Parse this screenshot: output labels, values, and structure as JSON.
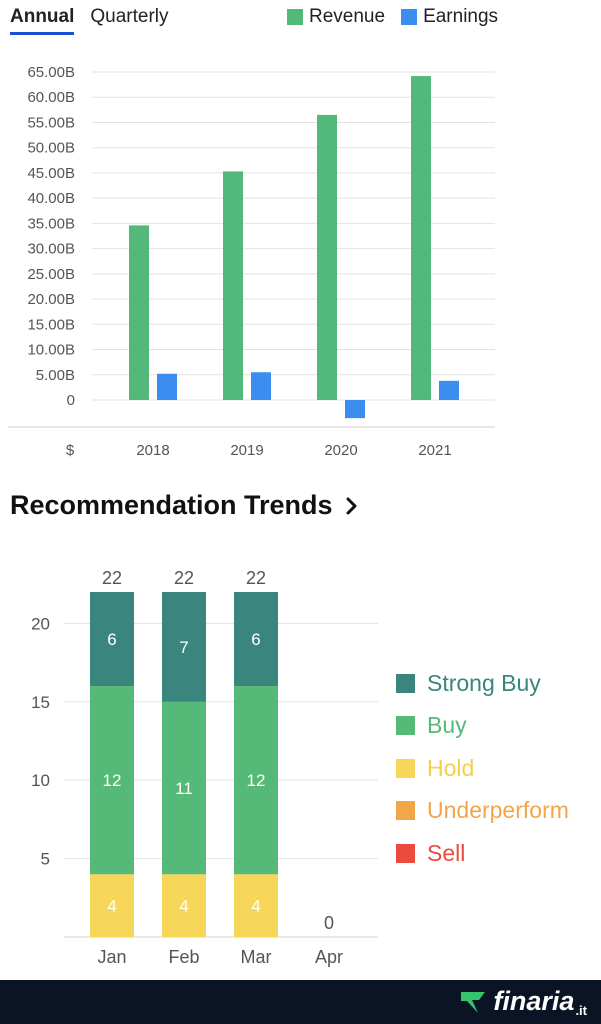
{
  "tabs": [
    {
      "label": "Annual",
      "active": true
    },
    {
      "label": "Quarterly",
      "active": false
    }
  ],
  "colors": {
    "revenue": "#53b97a",
    "earnings": "#3b8df0",
    "strong_buy": "#3a857d",
    "buy": "#55b977",
    "hold": "#f7d75a",
    "underperform": "#f3a54a",
    "sell": "#eb4a3e",
    "tab_underline": "#1a4fd8",
    "footer_bg": "#0b1424"
  },
  "section": {
    "title": "Recommendation Trends",
    "chevron": "chevron-right-icon"
  },
  "brand": {
    "name": "finaria",
    "suffix": ".it",
    "logo_icon": "finaria-logo-icon"
  },
  "chart_data": [
    {
      "type": "bar",
      "y_axis_unit_label": "$",
      "categories": [
        "2018",
        "2019",
        "2020",
        "2021"
      ],
      "series": [
        {
          "name": "Revenue",
          "values": [
            34.6,
            45.3,
            56.5,
            64.2
          ]
        },
        {
          "name": "Earnings",
          "values": [
            5.2,
            5.5,
            -3.6,
            3.8
          ]
        }
      ],
      "ylim": [
        -5,
        65
      ],
      "ticks": [
        0,
        5,
        10,
        15,
        20,
        25,
        30,
        35,
        40,
        45,
        50,
        55,
        60,
        65
      ],
      "tick_labels": [
        "0",
        "5.00B",
        "10.00B",
        "15.00B",
        "20.00B",
        "25.00B",
        "30.00B",
        "35.00B",
        "40.00B",
        "45.00B",
        "50.00B",
        "55.00B",
        "60.00B",
        "65.00B"
      ],
      "legend": "top",
      "grid": true
    },
    {
      "type": "bar",
      "stacked": true,
      "categories": [
        "Jan",
        "Feb",
        "Mar",
        "Apr"
      ],
      "series": [
        {
          "name": "Hold",
          "values": [
            4,
            4,
            4,
            0
          ]
        },
        {
          "name": "Buy",
          "values": [
            12,
            11,
            12,
            0
          ]
        },
        {
          "name": "Strong Buy",
          "values": [
            6,
            7,
            6,
            0
          ]
        },
        {
          "name": "Underperform",
          "values": [
            0,
            0,
            0,
            0
          ]
        },
        {
          "name": "Sell",
          "values": [
            0,
            0,
            0,
            0
          ]
        }
      ],
      "totals": [
        22,
        22,
        22,
        0
      ],
      "legend_order": [
        "Strong Buy",
        "Buy",
        "Hold",
        "Underperform",
        "Sell"
      ],
      "ylim": [
        0,
        22
      ],
      "ticks": [
        5,
        10,
        15,
        20
      ],
      "legend": "right",
      "grid": true
    }
  ]
}
